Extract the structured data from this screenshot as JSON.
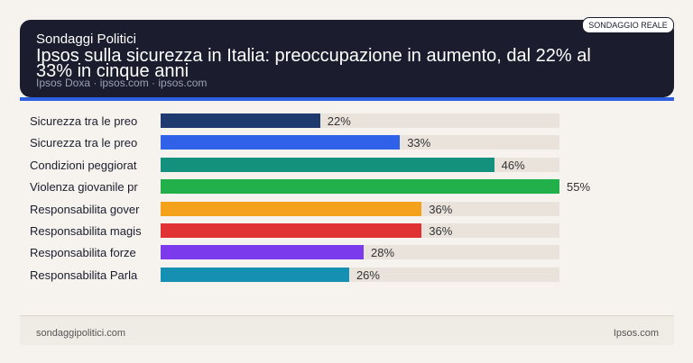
{
  "header": {
    "kicker": "Sondaggi Politici",
    "title": "Ipsos sulla sicurezza in Italia: preoccupazione in aumento, dal 22% al 33% in cinque anni",
    "source": "Ipsos Doxa · ipsos.com · ipsos.com",
    "badge": "SONDAGGIO REALE"
  },
  "chart_data": {
    "type": "bar",
    "orientation": "horizontal",
    "categories": [
      "Sicurezza tra le preo",
      "Sicurezza tra le preo",
      "Condizioni peggiorat",
      "Violenza giovanile pr",
      "Responsabilita gover",
      "Responsabilita magis",
      "Responsabilita forze",
      "Responsabilita Parla"
    ],
    "values": [
      22,
      33,
      46,
      55,
      36,
      36,
      28,
      26
    ],
    "value_labels": [
      "22%",
      "33%",
      "46%",
      "55%",
      "36%",
      "36%",
      "28%",
      "26%"
    ],
    "colors": [
      "#1e3a6e",
      "#2f62e8",
      "#14907f",
      "#22b04b",
      "#f4a11b",
      "#e03232",
      "#7c3aed",
      "#1590b2"
    ]
  },
  "footer": {
    "left": "sondaggipolitici.com",
    "right": "Ipsos.com"
  }
}
